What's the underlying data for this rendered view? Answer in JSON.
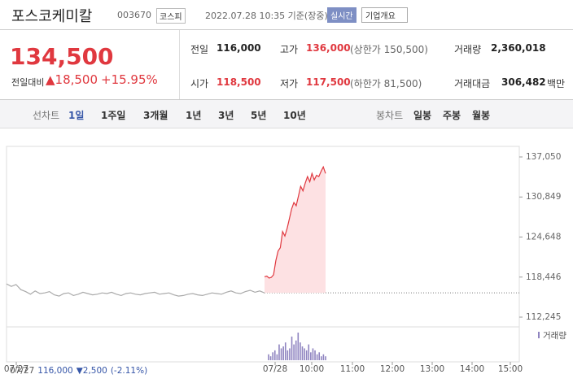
{
  "header": {
    "name": "포스코케미칼",
    "code": "003670",
    "market": "코스피",
    "time": "2022.07.28 10:35 기준(장중)",
    "realtime": "실시간",
    "company": "기업개요"
  },
  "price": {
    "current": "134,500",
    "change_label": "전일대비",
    "change": "▲18,500",
    "rate": "+15.95%"
  },
  "stats": [
    [
      {
        "label": "전일",
        "value": "116,000"
      },
      {
        "label": "고가",
        "value": "136,000",
        "extra": "(상한가 150,500)"
      },
      {
        "label": "거래량",
        "value": "2,360,018"
      }
    ],
    [
      {
        "label": "시가",
        "value": "118,500"
      },
      {
        "label": "저가",
        "value": "117,500",
        "extra": "(하한가 81,500)"
      },
      {
        "label": "거래대금",
        "value": "306,482",
        "unit": "백만"
      }
    ]
  ],
  "tabs": {
    "line_label": "선차트",
    "line": [
      "1일",
      "1주일",
      "3개월",
      "1년",
      "3년",
      "5년",
      "10년"
    ],
    "candle_label": "봉차트",
    "candle": [
      "일봉",
      "주봉",
      "월봉"
    ]
  },
  "chart_data": {
    "type": "line",
    "yticks": [
      {
        "value": 137050,
        "label": "137,050"
      },
      {
        "value": 130849,
        "label": "130,849"
      },
      {
        "value": 124648,
        "label": "124,648"
      },
      {
        "value": 118446,
        "label": "118,446"
      },
      {
        "value": 112245,
        "label": "112,245"
      }
    ],
    "ylim": [
      112245,
      137050
    ],
    "prev_close": 116000,
    "xtick_labels": [
      "07/27",
      "07/28",
      "10:00",
      "11:00",
      "12:00",
      "13:00",
      "14:00",
      "15:00"
    ],
    "series": [
      {
        "name": "07/27",
        "color": "#aaaaaa",
        "values": [
          117400,
          117000,
          117300,
          116500,
          116200,
          115800,
          116300,
          115900,
          116000,
          116200,
          115700,
          115500,
          115900,
          116000,
          115600,
          115800,
          116100,
          115900,
          115700,
          115800,
          116000,
          115900,
          116100,
          115800,
          115600,
          115900,
          116000,
          115800,
          115700,
          115900,
          116000,
          116100,
          115800,
          115900,
          116000,
          115700,
          115500,
          115600,
          115800,
          115900,
          115700,
          115600,
          115800,
          116000,
          115900,
          115800,
          116100,
          116300,
          116000,
          115900,
          116200,
          116400,
          116100,
          116300,
          116000
        ]
      },
      {
        "name": "07/28",
        "color": "#e0383f",
        "values": [
          118500,
          118600,
          118300,
          118400,
          118800,
          121000,
          122500,
          123000,
          125500,
          124800,
          126000,
          127500,
          129000,
          130000,
          129500,
          131000,
          132500,
          131800,
          133000,
          134000,
          133200,
          134500,
          133500,
          134200,
          134000,
          134800,
          135500,
          134500
        ]
      }
    ],
    "volume": {
      "name": "거래량",
      "color": "#8f84c0",
      "values": [
        3,
        2,
        4,
        5,
        3,
        8,
        6,
        7,
        9,
        5,
        6,
        12,
        8,
        10,
        14,
        9,
        7,
        6,
        5,
        8,
        4,
        6,
        5,
        3,
        4,
        2,
        3,
        2
      ]
    },
    "footer": {
      "date": "07/27",
      "close": "116,000",
      "change": "▼2,500",
      "rate": "(-2.11%)"
    }
  }
}
